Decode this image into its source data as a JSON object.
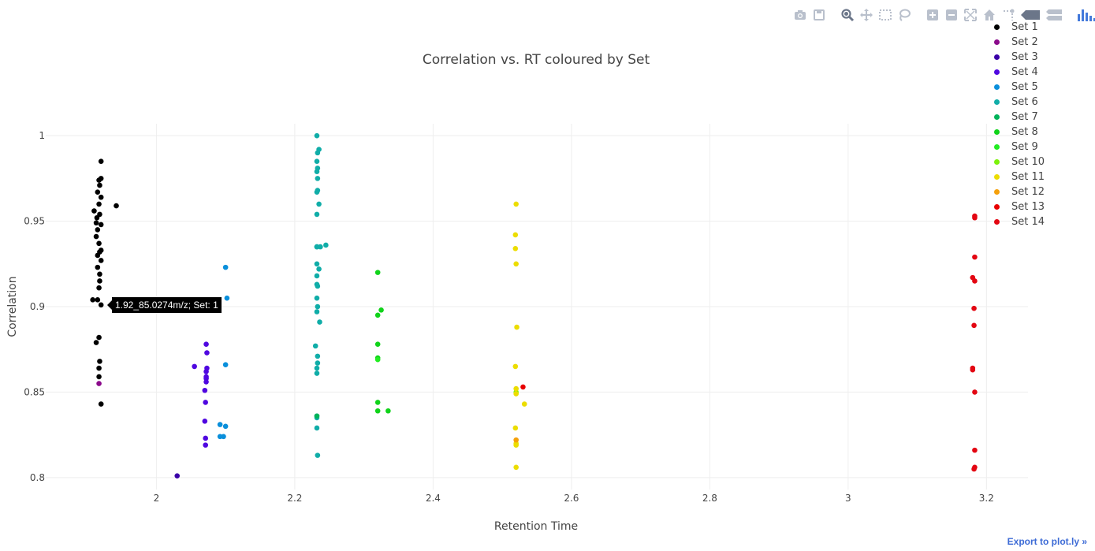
{
  "modebar": {
    "icons": [
      "camera-icon",
      "save-icon",
      "zoom-icon",
      "pan-icon",
      "box-select-icon",
      "lasso-icon",
      "zoom-in-icon",
      "zoom-out-icon",
      "autoscale-icon",
      "reset-axes-icon",
      "toggle-spike-icon",
      "hover-closest-icon",
      "hover-compare-icon",
      "plotly-logo-icon"
    ]
  },
  "export_label": "Export to plot.ly »",
  "tooltip": "1.92_85.0274m/z; Set: 1",
  "chart_data": {
    "type": "scatter",
    "title": "Correlation vs. RT coloured by Set",
    "xlabel": "Retention Time",
    "ylabel": "Correlation",
    "xlim": [
      1.84,
      3.26
    ],
    "ylim": [
      0.793,
      1.007
    ],
    "xticks": [
      2,
      2.2,
      2.4,
      2.6,
      2.8,
      3,
      3.2
    ],
    "xtick_labels": [
      "2",
      "2.2",
      "2.4",
      "2.6",
      "2.8",
      "3",
      "3.2"
    ],
    "yticks": [
      0.8,
      0.85,
      0.9,
      0.95,
      1
    ],
    "ytick_labels": [
      "0.8",
      "0.85",
      "0.9",
      "0.95",
      "1"
    ],
    "grid": true,
    "legend_position": "top-right",
    "series": [
      {
        "name": "Set 1",
        "color": "#000000",
        "x": [
          1.92,
          1.92,
          1.917,
          1.918,
          1.915,
          1.92,
          1.917,
          1.91,
          1.918,
          1.914,
          1.913,
          1.92,
          1.915,
          1.913,
          1.917,
          1.92,
          1.918,
          1.915,
          1.92,
          1.915,
          1.918,
          1.942,
          1.918,
          1.917,
          1.915,
          1.908,
          1.92,
          1.913,
          1.917,
          1.918,
          1.917,
          1.917,
          1.92
        ],
        "y": [
          0.985,
          0.975,
          0.974,
          0.971,
          0.967,
          0.964,
          0.96,
          0.956,
          0.954,
          0.952,
          0.949,
          0.948,
          0.945,
          0.941,
          0.937,
          0.933,
          0.932,
          0.93,
          0.927,
          0.923,
          0.919,
          0.959,
          0.915,
          0.911,
          0.904,
          0.904,
          0.901,
          0.879,
          0.882,
          0.868,
          0.864,
          0.859,
          0.843
        ]
      },
      {
        "name": "Set 2",
        "color": "#8b0a8b",
        "x": [
          1.917
        ],
        "y": [
          0.855
        ]
      },
      {
        "name": "Set 3",
        "color": "#3a00a8",
        "x": [
          2.03
        ],
        "y": [
          0.801
        ]
      },
      {
        "name": "Set 4",
        "color": "#4f07e0",
        "x": [
          2.072,
          2.073,
          2.073,
          2.055,
          2.072,
          2.072,
          2.072,
          2.07,
          2.071,
          2.07,
          2.071,
          2.071,
          2.072
        ],
        "y": [
          0.878,
          0.873,
          0.864,
          0.865,
          0.859,
          0.858,
          0.856,
          0.851,
          0.844,
          0.833,
          0.823,
          0.819,
          0.862
        ]
      },
      {
        "name": "Set 5",
        "color": "#0a8fdb",
        "x": [
          2.1,
          2.102,
          2.1,
          2.092,
          2.1,
          2.092,
          2.097
        ],
        "y": [
          0.923,
          0.905,
          0.866,
          0.831,
          0.83,
          0.824,
          0.824
        ]
      },
      {
        "name": "Set 6",
        "color": "#10ada8",
        "x": [
          2.232,
          2.235,
          2.233,
          2.232,
          2.233,
          2.232,
          2.233,
          2.233,
          2.232,
          2.235,
          2.232,
          2.232,
          2.232,
          2.237,
          2.245,
          2.232,
          2.235,
          2.232,
          2.232,
          2.233,
          2.232,
          2.233,
          2.236,
          2.23,
          2.233,
          2.233,
          2.232,
          2.232,
          2.232,
          2.232,
          2.232,
          2.233,
          2.232
        ],
        "y": [
          1.0,
          0.992,
          0.99,
          0.985,
          0.981,
          0.979,
          0.975,
          0.968,
          0.967,
          0.96,
          0.954,
          0.935,
          0.935,
          0.935,
          0.936,
          0.925,
          0.922,
          0.918,
          0.913,
          0.912,
          0.905,
          0.9,
          0.891,
          0.877,
          0.871,
          0.867,
          0.864,
          0.861,
          0.836,
          0.835,
          0.829,
          0.813,
          0.897
        ]
      },
      {
        "name": "Set 7",
        "color": "#00b35a",
        "x": [
          2.232
        ],
        "y": [
          0.836
        ]
      },
      {
        "name": "Set 8",
        "color": "#10d31a",
        "x": [
          2.32,
          2.325,
          2.32,
          2.32,
          2.32,
          2.32,
          2.32,
          2.335
        ],
        "y": [
          0.92,
          0.898,
          0.895,
          0.878,
          0.87,
          0.844,
          0.839,
          0.839
        ]
      },
      {
        "name": "Set 9",
        "color": "#22ec22",
        "x": [
          2.32
        ],
        "y": [
          0.869
        ]
      },
      {
        "name": "Set 10",
        "color": "#7cf20a",
        "x": [
          2.52
        ],
        "y": [
          0.85
        ]
      },
      {
        "name": "Set 11",
        "color": "#ecdd00",
        "x": [
          2.52,
          2.519,
          2.519,
          2.52,
          2.521,
          2.519,
          2.52,
          2.52,
          2.532,
          2.519,
          2.52,
          2.52,
          2.52
        ],
        "y": [
          0.96,
          0.942,
          0.934,
          0.925,
          0.888,
          0.865,
          0.852,
          0.849,
          0.843,
          0.829,
          0.82,
          0.819,
          0.806
        ]
      },
      {
        "name": "Set 12",
        "color": "#f5a00a",
        "x": [
          2.52
        ],
        "y": [
          0.822
        ]
      },
      {
        "name": "Set 13",
        "color": "#e80000",
        "x": [
          2.53
        ],
        "y": [
          0.853
        ]
      },
      {
        "name": "Set 14",
        "color": "#e30612",
        "x": [
          3.183,
          3.183,
          3.183,
          3.18,
          3.183,
          3.182,
          3.182,
          3.18,
          3.18,
          3.183,
          3.183,
          3.183,
          3.182
        ],
        "y": [
          0.953,
          0.952,
          0.929,
          0.917,
          0.915,
          0.899,
          0.889,
          0.864,
          0.863,
          0.85,
          0.816,
          0.806,
          0.805
        ]
      }
    ]
  }
}
